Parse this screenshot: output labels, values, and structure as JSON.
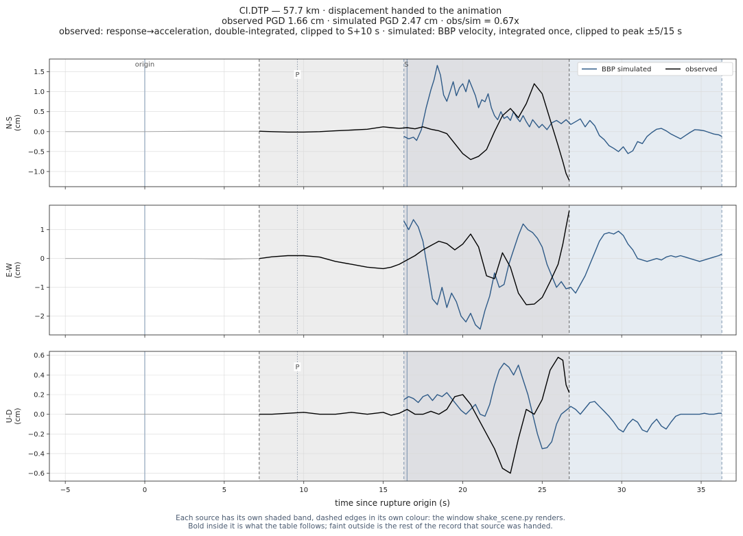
{
  "header": {
    "line1": "CI.DTP  —  57.7 km   ·   displacement handed to the animation",
    "line2": "observed PGD 1.66 cm   ·   simulated PGD 2.47 cm   ·   obs/sim = 0.67x",
    "line3": "observed: response→acceleration, double-integrated, clipped to S+10 s   ·   simulated: BBP velocity, integrated once, clipped to peak ±5/15 s"
  },
  "footer": {
    "line1": "Each source has its own shaded band, dashed edges in its own colour: the window shake_scene.py renders.",
    "line2": "Bold inside it is what the table follows;   faint outside is the rest of the record that source was handed."
  },
  "colors": {
    "simulated": "#2e5a87",
    "observed": "#000000",
    "obs_band": "#ededed",
    "sim_band": "#e6ecf2",
    "overlap_band": "#dedfe3",
    "obs_edge": "#666666",
    "sim_edge": "#7e96b0",
    "origin_line": "#9fb0c4",
    "p_line": "#8a97a8"
  },
  "chart_data": {
    "type": "line",
    "xlabel": "time since rupture origin (s)",
    "xlim": [
      -6,
      37.2
    ],
    "xticks": [
      -5,
      0,
      5,
      10,
      15,
      20,
      25,
      30,
      35
    ],
    "markers": [
      {
        "label": "origin",
        "t": 0
      },
      {
        "label": "P",
        "t": 9.6
      },
      {
        "label": "S",
        "t": 16.5
      }
    ],
    "windows": {
      "observed": [
        7.2,
        26.7
      ],
      "simulated": [
        16.3,
        36.3
      ]
    },
    "legend": {
      "placement": "top-right of first panel",
      "entries": [
        {
          "name": "BBP simulated",
          "series": "simulated"
        },
        {
          "name": "observed",
          "series": "observed"
        }
      ]
    },
    "panels": [
      {
        "id": "ns",
        "ylabel": [
          "N-S",
          "(cm)"
        ],
        "ylim": [
          -1.38,
          1.82
        ],
        "yticks": [
          -1.0,
          -0.5,
          0.0,
          0.5,
          1.0,
          1.5
        ],
        "yticklabels": [
          "−1.0",
          "−0.5",
          "0.0",
          "0.5",
          "1.0",
          "1.5"
        ],
        "observed": {
          "x": [
            -5,
            0,
            3,
            5,
            7.2,
            8,
            9,
            10,
            11,
            12,
            13,
            14,
            15,
            15.5,
            16,
            16.5,
            17,
            17.5,
            18,
            18.5,
            19,
            19.5,
            20,
            20.5,
            21,
            21.5,
            22,
            22.5,
            23,
            23.5,
            24,
            24.5,
            25,
            25.5,
            26,
            26.3,
            26.5,
            26.7
          ],
          "y": [
            0,
            0,
            0.01,
            0.01,
            0.01,
            0.0,
            -0.01,
            -0.01,
            0.0,
            0.02,
            0.04,
            0.06,
            0.12,
            0.1,
            0.08,
            0.1,
            0.07,
            0.12,
            0.06,
            0.02,
            -0.05,
            -0.3,
            -0.55,
            -0.7,
            -0.62,
            -0.45,
            0.0,
            0.4,
            0.58,
            0.35,
            0.7,
            1.2,
            0.95,
            0.3,
            -0.35,
            -0.75,
            -1.05,
            -1.22
          ]
        },
        "simulated": {
          "x": [
            16.3,
            16.6,
            16.9,
            17.1,
            17.4,
            17.7,
            18.0,
            18.2,
            18.4,
            18.6,
            18.8,
            19.0,
            19.2,
            19.4,
            19.6,
            19.8,
            20.0,
            20.2,
            20.4,
            20.6,
            20.8,
            21.0,
            21.2,
            21.4,
            21.6,
            21.8,
            22.0,
            22.2,
            22.4,
            22.6,
            22.8,
            23.0,
            23.2,
            23.4,
            23.6,
            23.8,
            24.0,
            24.2,
            24.4,
            24.6,
            24.8,
            25.0,
            25.3,
            25.6,
            25.9,
            26.2,
            26.5,
            26.8,
            27.1,
            27.4,
            27.7,
            28.0,
            28.3,
            28.6,
            28.9,
            29.2,
            29.5,
            29.8,
            30.1,
            30.4,
            30.7,
            31.0,
            31.3,
            31.6,
            31.9,
            32.2,
            32.5,
            32.8,
            33.1,
            33.4,
            33.7,
            34.0,
            34.3,
            34.6,
            34.9,
            35.2,
            35.5,
            35.8,
            36.1,
            36.3
          ],
          "y": [
            -0.12,
            -0.18,
            -0.14,
            -0.22,
            0.05,
            0.6,
            1.05,
            1.3,
            1.66,
            1.42,
            0.92,
            0.76,
            1.0,
            1.25,
            0.9,
            1.1,
            1.2,
            1.0,
            1.3,
            1.1,
            0.9,
            0.6,
            0.8,
            0.75,
            0.95,
            0.6,
            0.4,
            0.3,
            0.5,
            0.33,
            0.38,
            0.28,
            0.5,
            0.35,
            0.25,
            0.4,
            0.25,
            0.12,
            0.3,
            0.2,
            0.1,
            0.18,
            0.05,
            0.22,
            0.28,
            0.2,
            0.3,
            0.18,
            0.25,
            0.32,
            0.12,
            0.28,
            0.15,
            -0.1,
            -0.2,
            -0.35,
            -0.42,
            -0.5,
            -0.38,
            -0.55,
            -0.48,
            -0.25,
            -0.3,
            -0.12,
            -0.02,
            0.06,
            0.08,
            0.02,
            -0.06,
            -0.12,
            -0.18,
            -0.1,
            -0.02,
            0.05,
            0.04,
            0.02,
            -0.02,
            -0.06,
            -0.08,
            -0.12
          ]
        }
      },
      {
        "id": "ew",
        "ylabel": [
          "E-W",
          "(cm)"
        ],
        "ylim": [
          -2.65,
          1.85
        ],
        "yticks": [
          -2,
          -1,
          0,
          1
        ],
        "yticklabels": [
          "−2",
          "−1",
          "0",
          "1"
        ],
        "observed": {
          "x": [
            -5,
            0,
            3,
            5,
            7.2,
            8,
            9,
            10,
            11,
            12,
            13,
            14,
            15,
            15.5,
            16,
            16.5,
            17,
            17.5,
            18,
            18.5,
            19,
            19.5,
            20,
            20.5,
            21,
            21.5,
            22,
            22.5,
            23,
            23.5,
            24,
            24.5,
            25,
            25.5,
            26,
            26.3,
            26.5,
            26.7
          ],
          "y": [
            0,
            0,
            0,
            -0.02,
            0.0,
            0.06,
            0.1,
            0.1,
            0.05,
            -0.1,
            -0.2,
            -0.3,
            -0.35,
            -0.3,
            -0.2,
            -0.05,
            0.1,
            0.3,
            0.45,
            0.6,
            0.52,
            0.3,
            0.5,
            0.85,
            0.4,
            -0.6,
            -0.7,
            0.2,
            -0.3,
            -1.2,
            -1.6,
            -1.58,
            -1.35,
            -0.8,
            -0.2,
            0.5,
            1.1,
            1.66
          ]
        },
        "simulated": {
          "x": [
            16.3,
            16.6,
            16.9,
            17.2,
            17.5,
            17.8,
            18.1,
            18.4,
            18.7,
            19.0,
            19.3,
            19.6,
            19.9,
            20.2,
            20.5,
            20.8,
            21.1,
            21.4,
            21.7,
            22.0,
            22.3,
            22.6,
            22.9,
            23.2,
            23.5,
            23.8,
            24.1,
            24.4,
            24.7,
            25.0,
            25.3,
            25.6,
            25.9,
            26.2,
            26.5,
            26.8,
            27.1,
            27.4,
            27.7,
            28.0,
            28.3,
            28.6,
            28.9,
            29.2,
            29.5,
            29.8,
            30.1,
            30.4,
            30.7,
            31.0,
            31.3,
            31.6,
            31.9,
            32.2,
            32.5,
            32.8,
            33.1,
            33.4,
            33.7,
            34.0,
            34.3,
            34.6,
            34.9,
            35.2,
            35.5,
            35.8,
            36.1,
            36.3
          ],
          "y": [
            1.3,
            1.0,
            1.35,
            1.1,
            0.6,
            -0.4,
            -1.4,
            -1.6,
            -1.0,
            -1.7,
            -1.2,
            -1.5,
            -2.0,
            -2.2,
            -1.9,
            -2.3,
            -2.45,
            -1.8,
            -1.3,
            -0.5,
            -1.0,
            -0.9,
            -0.2,
            0.3,
            0.8,
            1.2,
            1.0,
            0.9,
            0.7,
            0.4,
            -0.2,
            -0.6,
            -1.0,
            -0.8,
            -1.05,
            -1.0,
            -1.2,
            -0.9,
            -0.6,
            -0.2,
            0.2,
            0.6,
            0.85,
            0.9,
            0.85,
            0.95,
            0.8,
            0.5,
            0.3,
            0.0,
            -0.05,
            -0.1,
            -0.05,
            0.0,
            -0.05,
            0.05,
            0.1,
            0.05,
            0.1,
            0.05,
            0.0,
            -0.05,
            -0.1,
            -0.05,
            0.0,
            0.05,
            0.1,
            0.15
          ]
        }
      },
      {
        "id": "ud",
        "ylabel": [
          "U-D",
          "(cm)"
        ],
        "ylim": [
          -0.68,
          0.64
        ],
        "yticks": [
          -0.6,
          -0.4,
          -0.2,
          0.0,
          0.2,
          0.4,
          0.6
        ],
        "yticklabels": [
          "−0.6",
          "−0.4",
          "−0.2",
          "0.0",
          "0.2",
          "0.4",
          "0.6"
        ],
        "observed": {
          "x": [
            -5,
            0,
            3,
            5,
            7.2,
            8,
            9,
            10,
            11,
            12,
            13,
            14,
            15,
            15.5,
            16,
            16.5,
            17,
            17.5,
            18,
            18.5,
            19,
            19.5,
            20,
            20.5,
            21,
            21.5,
            22,
            22.5,
            23,
            23.5,
            24,
            24.5,
            25,
            25.5,
            26,
            26.3,
            26.5,
            26.7
          ],
          "y": [
            0,
            0,
            0,
            0,
            0.0,
            0.0,
            0.01,
            0.02,
            0.0,
            0.0,
            0.02,
            0.0,
            0.02,
            -0.01,
            0.01,
            0.05,
            0.0,
            0.0,
            0.03,
            0.0,
            0.05,
            0.18,
            0.2,
            0.1,
            -0.05,
            -0.2,
            -0.35,
            -0.55,
            -0.6,
            -0.25,
            0.05,
            0.0,
            0.15,
            0.45,
            0.58,
            0.55,
            0.3,
            0.22
          ]
        },
        "simulated": {
          "x": [
            16.3,
            16.6,
            16.9,
            17.2,
            17.5,
            17.8,
            18.1,
            18.4,
            18.7,
            19.0,
            19.3,
            19.6,
            19.9,
            20.2,
            20.5,
            20.8,
            21.1,
            21.4,
            21.7,
            22.0,
            22.3,
            22.6,
            22.9,
            23.2,
            23.5,
            23.8,
            24.1,
            24.4,
            24.7,
            25.0,
            25.3,
            25.6,
            25.9,
            26.2,
            26.5,
            26.8,
            27.1,
            27.4,
            27.7,
            28.0,
            28.3,
            28.6,
            28.9,
            29.2,
            29.5,
            29.8,
            30.1,
            30.4,
            30.7,
            31.0,
            31.3,
            31.6,
            31.9,
            32.2,
            32.5,
            32.8,
            33.1,
            33.4,
            33.7,
            34.0,
            34.3,
            34.6,
            34.9,
            35.2,
            35.5,
            35.8,
            36.1,
            36.3
          ],
          "y": [
            0.15,
            0.18,
            0.16,
            0.12,
            0.18,
            0.2,
            0.14,
            0.2,
            0.18,
            0.22,
            0.16,
            0.1,
            0.04,
            0.0,
            0.05,
            0.1,
            0.0,
            -0.02,
            0.1,
            0.3,
            0.45,
            0.52,
            0.48,
            0.4,
            0.5,
            0.35,
            0.2,
            0.0,
            -0.2,
            -0.35,
            -0.34,
            -0.28,
            -0.1,
            0.0,
            0.04,
            0.08,
            0.05,
            0.0,
            0.06,
            0.12,
            0.13,
            0.08,
            0.03,
            -0.02,
            -0.08,
            -0.15,
            -0.18,
            -0.1,
            -0.05,
            -0.08,
            -0.16,
            -0.18,
            -0.1,
            -0.05,
            -0.12,
            -0.15,
            -0.08,
            -0.02,
            0.0,
            0.0,
            0.0,
            0.0,
            0.0,
            0.01,
            0.0,
            0.0,
            0.01,
            0.01
          ]
        }
      }
    ]
  }
}
